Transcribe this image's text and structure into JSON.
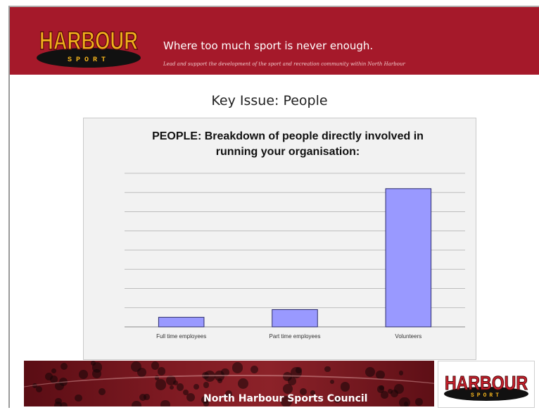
{
  "header": {
    "logo_top": "HARBOUR",
    "logo_bottom": "SPORT",
    "tagline": "Where too much sport is never enough.",
    "subtagline": "Lead and support the development of the sport and recreation community within North Harbour"
  },
  "slide": {
    "title": "Key Issue: People"
  },
  "footer": {
    "council_name": "North Harbour Sports Council",
    "logo_top": "HARBOUR",
    "logo_bottom": "SPORT"
  },
  "colors": {
    "header_red": "#a5192a",
    "bar_fill": "#9999ff",
    "bar_stroke": "#2b2b6b"
  },
  "chart_data": {
    "type": "bar",
    "title": "PEOPLE: Breakdown of people directly involved in running your organisation:",
    "title_lines": [
      "PEOPLE: Breakdown of people directly involved in",
      "running your organisation:"
    ],
    "categories": [
      "Full time employees",
      "Part time employees",
      "Volunteers"
    ],
    "values": [
      5,
      9,
      72
    ],
    "ylim": [
      0,
      80
    ],
    "gridlines": 8,
    "grid": true,
    "xlabel": "",
    "ylabel": ""
  }
}
